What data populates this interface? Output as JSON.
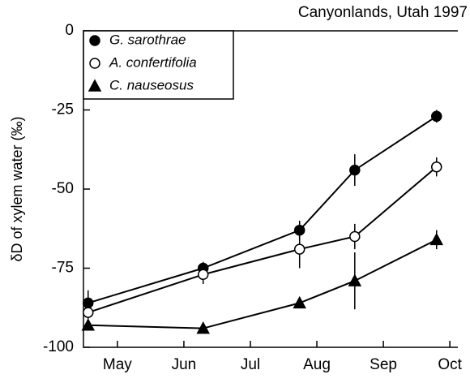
{
  "chart_data": {
    "type": "line",
    "title": "Canyonlands, Utah 1997",
    "ylabel": "δD of xylem water (‰)",
    "x": [
      4.56,
      6.29,
      7.74,
      8.57,
      9.8
    ],
    "xlim": [
      4.49,
      10.12
    ],
    "xticks": [
      {
        "value": 5,
        "label": "May"
      },
      {
        "value": 6,
        "label": "Jun"
      },
      {
        "value": 7,
        "label": "Jul"
      },
      {
        "value": 8,
        "label": "Aug"
      },
      {
        "value": 9,
        "label": "Sep"
      },
      {
        "value": 10,
        "label": "Oct"
      }
    ],
    "ylim": [
      -100,
      0
    ],
    "yticks": [
      0,
      -25,
      -50,
      -75,
      -100
    ],
    "legend": "upper left",
    "series": [
      {
        "name": "G. sarothrae",
        "color": "#000000",
        "marker": "circle-filled",
        "values": [
          -86,
          -75,
          -63,
          -44,
          -27
        ],
        "errors": [
          4,
          2,
          3,
          5,
          2
        ]
      },
      {
        "name": "A. confertifolia",
        "color": "#000000",
        "marker": "circle-open",
        "values": [
          -89,
          -77,
          -69,
          -65,
          -43
        ],
        "errors": [
          2,
          3,
          6,
          4,
          3
        ]
      },
      {
        "name": "C. nauseosus",
        "color": "#000000",
        "marker": "triangle-filled",
        "values": [
          -93,
          -94,
          -86,
          -79,
          -66
        ],
        "errors": [
          1,
          1,
          1,
          9,
          3
        ]
      }
    ]
  }
}
